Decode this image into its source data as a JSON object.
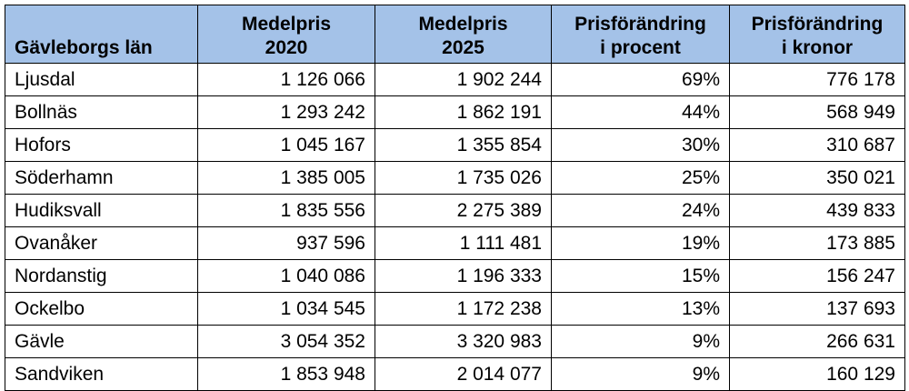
{
  "table": {
    "headers": [
      {
        "line1": "Gävleborgs län",
        "line2": ""
      },
      {
        "line1": "Medelpris",
        "line2": "2020"
      },
      {
        "line1": "Medelpris",
        "line2": "2025"
      },
      {
        "line1": "Prisförändring",
        "line2": "i procent"
      },
      {
        "line1": "Prisförändring",
        "line2": "i kronor"
      }
    ],
    "rows": [
      {
        "name": "Ljusdal",
        "pris2020": "1 126 066",
        "pris2025": "1 902 244",
        "procent": "69%",
        "kronor": "776 178"
      },
      {
        "name": "Bollnäs",
        "pris2020": "1 293 242",
        "pris2025": "1 862 191",
        "procent": "44%",
        "kronor": "568 949"
      },
      {
        "name": "Hofors",
        "pris2020": "1 045 167",
        "pris2025": "1 355 854",
        "procent": "30%",
        "kronor": "310 687"
      },
      {
        "name": "Söderhamn",
        "pris2020": "1 385 005",
        "pris2025": "1 735 026",
        "procent": "25%",
        "kronor": "350 021"
      },
      {
        "name": "Hudiksvall",
        "pris2020": "1 835 556",
        "pris2025": "2 275 389",
        "procent": "24%",
        "kronor": "439 833"
      },
      {
        "name": "Ovanåker",
        "pris2020": "937 596",
        "pris2025": "1 111 481",
        "procent": "19%",
        "kronor": "173 885"
      },
      {
        "name": "Nordanstig",
        "pris2020": "1 040 086",
        "pris2025": "1 196 333",
        "procent": "15%",
        "kronor": "156 247"
      },
      {
        "name": "Ockelbo",
        "pris2020": "1 034 545",
        "pris2025": "1 172 238",
        "procent": "13%",
        "kronor": "137 693"
      },
      {
        "name": "Gävle",
        "pris2020": "3 054 352",
        "pris2025": "3 320 983",
        "procent": "9%",
        "kronor": "266 631"
      },
      {
        "name": "Sandviken",
        "pris2020": "1 853 948",
        "pris2025": "2 014 077",
        "procent": "9%",
        "kronor": "160 129"
      }
    ],
    "header_color": "#a4c2e8"
  }
}
